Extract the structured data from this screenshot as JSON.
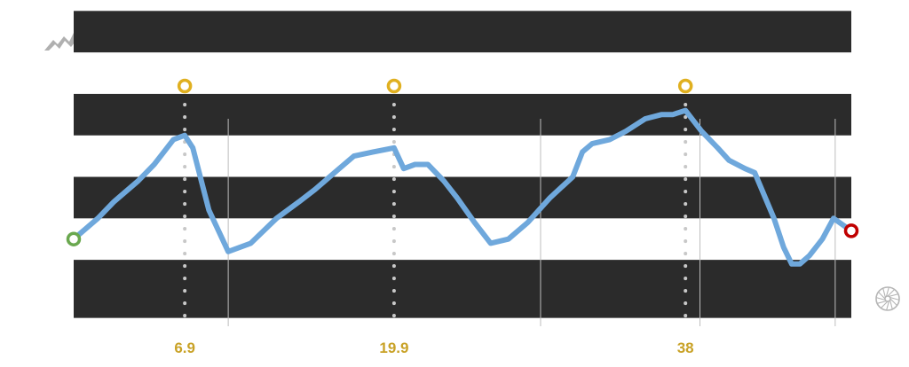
{
  "chart_data": {
    "type": "line",
    "title": "",
    "xlabel": "",
    "ylabel": "",
    "xlim": [
      0,
      48.3
    ],
    "ylim": [
      0,
      10
    ],
    "x_ticks": [
      6.9,
      19.9,
      38
    ],
    "x_tick_labels": [
      "6.9",
      "19.9",
      "38"
    ],
    "band_edges": [
      0,
      1.6,
      2.6,
      3.6,
      4.6,
      5.6,
      6.6,
      7.6
    ],
    "dark_bands": [
      [
        0.2,
        1.6
      ],
      [
        2.6,
        3.6
      ],
      [
        4.6,
        5.6
      ],
      [
        6.6,
        7.6
      ]
    ],
    "segment_dividers": [
      9.6,
      29.0,
      38.9,
      47.3
    ],
    "series": [
      {
        "x": [
          0,
          1.5,
          2.5,
          4,
          5,
          5.6,
          6.2,
          6.9,
          7.4,
          8.4,
          9.6,
          11,
          12.6,
          14,
          15,
          16.2,
          17.4,
          18.6,
          19.9,
          20.5,
          21.2,
          22,
          23,
          23.8,
          24.9,
          25.9,
          27,
          28.2,
          29.6,
          31,
          31.6,
          32.2,
          33.3,
          34.3,
          35.5,
          36.5,
          37.2,
          38,
          38.6,
          39,
          40,
          40.7,
          41.7,
          42.3,
          43.5,
          44.1,
          44.6,
          45.1,
          45.7,
          46.5,
          47.2,
          48.3
        ],
        "y": [
          2.1,
          2.6,
          3.0,
          3.5,
          3.9,
          4.2,
          4.5,
          4.6,
          4.3,
          2.8,
          1.8,
          2.0,
          2.6,
          3.0,
          3.3,
          3.7,
          4.1,
          4.2,
          4.3,
          3.8,
          3.9,
          3.9,
          3.5,
          3.1,
          2.5,
          2.0,
          2.1,
          2.5,
          3.1,
          3.6,
          4.2,
          4.4,
          4.5,
          4.7,
          5.0,
          5.1,
          5.1,
          5.2,
          4.9,
          4.7,
          4.3,
          4.0,
          3.8,
          3.7,
          2.6,
          1.9,
          1.5,
          1.5,
          1.7,
          2.1,
          2.6,
          2.3
        ]
      }
    ],
    "start_marker_color": "#6aa84f",
    "end_marker_color": "#c00000",
    "peak_marker_color": "#e0b020",
    "line_color": "#6fa8dc",
    "band_color": "#2b2b2b",
    "tick_label_color": "#c9a227",
    "icons": [
      "mountain-icon",
      "wheel-icon"
    ]
  }
}
